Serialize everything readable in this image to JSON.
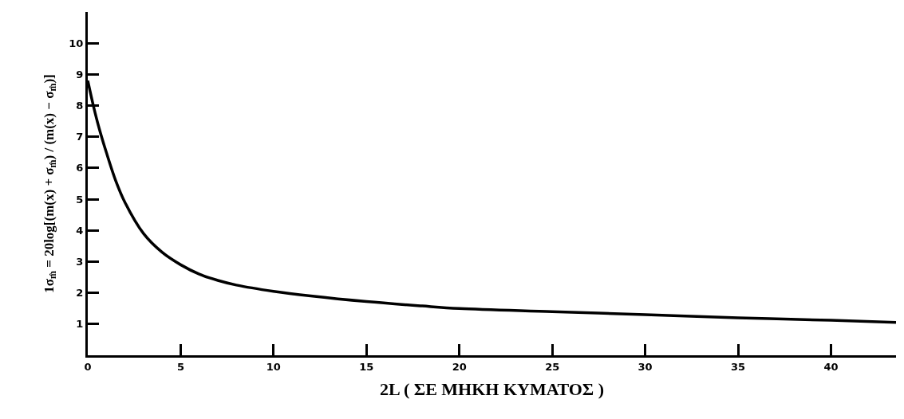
{
  "chart_data": {
    "type": "line",
    "xlabel": "2L ( ΣΕ ΜΗΚΗ ΚΥΜΑΤΟΣ )",
    "ylabel": "1σ$_{m̂}$ = 20log[(m(x) + σ$_{m̂}$) / (m(x) − σ$_{m̂}$)]",
    "x": [
      0,
      0.3,
      0.6,
      1,
      1.5,
      2,
      3,
      4,
      5,
      6,
      7,
      8,
      10,
      12,
      15,
      18,
      20,
      25,
      30,
      35,
      40,
      43.5
    ],
    "series": [
      {
        "color": "#000000",
        "values": [
          8.8,
          8.0,
          7.3,
          6.5,
          5.6,
          4.9,
          3.9,
          3.3,
          2.9,
          2.6,
          2.4,
          2.25,
          2.05,
          1.9,
          1.72,
          1.58,
          1.5,
          1.4,
          1.3,
          1.2,
          1.12,
          1.05
        ]
      }
    ],
    "xlim": [
      0,
      43.5
    ],
    "ylim": [
      0,
      11
    ],
    "xticks": [
      0,
      5,
      10,
      15,
      20,
      25,
      30,
      35,
      40
    ],
    "yticks": [
      1,
      2,
      3,
      4,
      5,
      6,
      7,
      8,
      9,
      10
    ],
    "marker": "none",
    "line_style": "solid"
  }
}
